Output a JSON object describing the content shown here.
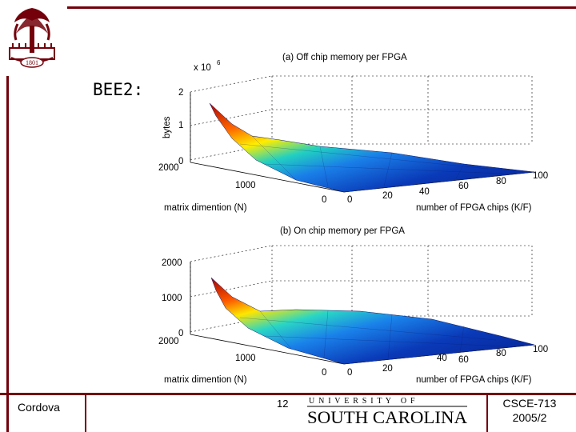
{
  "slide": {
    "label": "BEE2:",
    "footer_author": "Cordova",
    "footer_page": "12",
    "footer_course": "CSCE-713",
    "footer_term": "2005/2",
    "university_line": "U N I V E R S I T Y   O F",
    "university_name": "SOUTH CAROLINA",
    "logo_year": "1801"
  },
  "colors": {
    "garnet": "#73000a",
    "surface_low": "#0a2aa8",
    "surface_high": "#c00000"
  },
  "plots": [
    {
      "title": "(a) Off chip memory per FPGA",
      "exponent": "x 10",
      "exponent_power": "6",
      "zlabel": "bytes",
      "zticks": [
        "2",
        "1",
        "0"
      ],
      "xlabel": "matrix dimention (N)",
      "xticks": [
        "2000",
        "1000",
        "0"
      ],
      "ylabel": "number of FPGA chips (K/F)",
      "yticks": [
        "0",
        "20",
        "40",
        "60",
        "80",
        "100"
      ]
    },
    {
      "title": "(b) On chip memory per FPGA",
      "zticks": [
        "2000",
        "1000",
        "0"
      ],
      "xlabel": "matrix dimention (N)",
      "xticks": [
        "2000",
        "1000",
        "0"
      ],
      "ylabel": "number of FPGA chips (K/F)",
      "yticks": [
        "0",
        "20",
        "40",
        "60",
        "80",
        "100"
      ]
    }
  ],
  "icons": {
    "logo": "palmetto-seal-icon",
    "wordmark": "usc-wordmark"
  }
}
